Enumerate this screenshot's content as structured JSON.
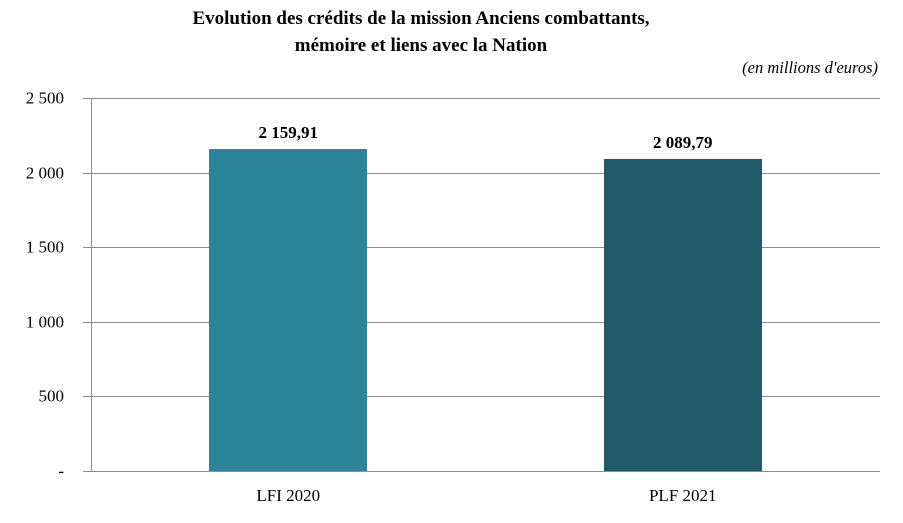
{
  "header": {
    "title_line1": "Evolution des crédits de la mission Anciens combattants,",
    "title_line2": "mémoire et liens avec la Nation",
    "unit_note": "(en millions d'euros)"
  },
  "chart_data": {
    "type": "bar",
    "title": "Evolution des crédits de la mission Anciens combattants, mémoire et liens avec la Nation",
    "subtitle": "(en millions d'euros)",
    "categories": [
      "LFI 2020",
      "PLF 2021"
    ],
    "values": [
      2159.91,
      2089.79
    ],
    "value_labels": [
      "2 159,91",
      "2 089,79"
    ],
    "bar_colors": [
      "#2E8599",
      "#215B6A"
    ],
    "ylim": [
      0,
      2500
    ],
    "y_ticks": [
      {
        "value": 2500,
        "label": "2 500"
      },
      {
        "value": 2000,
        "label": "2 000"
      },
      {
        "value": 1500,
        "label": "1 500"
      },
      {
        "value": 1000,
        "label": "1 000"
      },
      {
        "value": 500,
        "label": "500"
      },
      {
        "value": 0,
        "label": "-"
      }
    ],
    "grid": true,
    "gridline_color": "#8C8C8C",
    "legend_position": "none",
    "xlabel": "",
    "ylabel": ""
  }
}
